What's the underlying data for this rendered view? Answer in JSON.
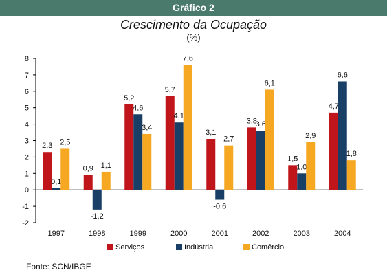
{
  "header": {
    "label": "Gráfico 2"
  },
  "chart_data": {
    "type": "bar",
    "title": "Crescimento da Ocupação",
    "subtitle": "(%)",
    "categories": [
      "1997",
      "1998",
      "1999",
      "2000",
      "2001",
      "2002",
      "2003",
      "2004"
    ],
    "series": [
      {
        "name": "Serviços",
        "color": "#c0161b",
        "values": [
          2.3,
          0.9,
          5.2,
          5.7,
          3.1,
          3.8,
          1.5,
          4.7
        ],
        "labels": [
          "2,3",
          "0,9",
          "5,2",
          "5,7",
          "3,1",
          "3,8",
          "1,5",
          "4,7"
        ]
      },
      {
        "name": "Indústria",
        "color": "#1a3f66",
        "values": [
          0.1,
          -1.2,
          4.6,
          4.1,
          -0.6,
          3.6,
          1.0,
          6.6
        ],
        "labels": [
          "0,1",
          "-1,2",
          "4,6",
          "4,1",
          "-0,6",
          "3,6",
          "1,0",
          "6,6"
        ]
      },
      {
        "name": "Comércio",
        "color": "#f6a822",
        "values": [
          2.5,
          1.1,
          3.4,
          7.6,
          2.7,
          6.1,
          2.9,
          1.8
        ],
        "labels": [
          "2,5",
          "1,1",
          "3,4",
          "7,6",
          "2,7",
          "6,1",
          "2,9",
          "1,8"
        ]
      }
    ],
    "ylim": [
      -2,
      8
    ],
    "yticks": [
      8,
      7,
      6,
      5,
      4,
      3,
      2,
      1,
      0,
      -1,
      -2
    ],
    "grid": false,
    "legend": "bottom"
  },
  "source": "Fonte: SCN/IBGE"
}
